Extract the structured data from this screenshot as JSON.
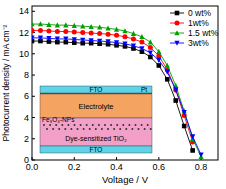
{
  "chart_data": {
    "type": "line",
    "x_label": "Voltage / V",
    "y_label": "Photocurrent density / mA cm⁻²",
    "x": [
      0,
      0.04,
      0.08,
      0.12,
      0.16,
      0.2,
      0.24,
      0.28,
      0.32,
      0.36,
      0.4,
      0.44,
      0.48,
      0.52,
      0.56,
      0.6,
      0.64,
      0.68,
      0.72,
      0.76,
      0.8,
      0.84
    ],
    "series": [
      {
        "name": "0 wt%",
        "color": "#000000",
        "marker": "square",
        "values": [
          11.2,
          11.2,
          11.15,
          11.1,
          11.1,
          11.05,
          11.0,
          11.0,
          10.95,
          10.9,
          10.8,
          10.7,
          10.5,
          10.2,
          9.7,
          8.9,
          7.6,
          5.6,
          3.2,
          0.9,
          null,
          null
        ]
      },
      {
        "name": "1wt%",
        "color": "#ff0000",
        "marker": "circle",
        "values": [
          12.2,
          12.2,
          12.15,
          12.1,
          12.1,
          12.05,
          12.0,
          11.95,
          11.9,
          11.85,
          11.75,
          11.6,
          11.4,
          11.1,
          10.6,
          9.8,
          8.5,
          6.6,
          4.2,
          1.7,
          null,
          null
        ]
      },
      {
        "name": "1.5 wt%",
        "color": "#00a000",
        "marker": "triangle-up",
        "values": [
          12.8,
          12.8,
          12.75,
          12.7,
          12.7,
          12.65,
          12.6,
          12.55,
          12.5,
          12.4,
          12.3,
          12.15,
          11.9,
          11.6,
          11.1,
          10.2,
          8.9,
          7.0,
          4.6,
          2.0,
          0.3,
          null
        ]
      },
      {
        "name": "3wt%",
        "color": "#0000ff",
        "marker": "triangle-down",
        "values": [
          11.5,
          11.5,
          11.45,
          11.4,
          11.4,
          11.35,
          11.3,
          11.25,
          11.2,
          11.15,
          11.05,
          10.95,
          10.75,
          10.5,
          10.1,
          9.4,
          8.3,
          6.6,
          4.5,
          2.2,
          0.5,
          null
        ]
      }
    ],
    "xlim": [
      0,
      0.88
    ],
    "xticks": [
      {
        "value": 0,
        "label": "0.0"
      },
      {
        "value": 0.2,
        "label": "0.2"
      },
      {
        "value": 0.4,
        "label": "0.4"
      },
      {
        "value": 0.6,
        "label": "0.6"
      },
      {
        "value": 0.8,
        "label": "0.8"
      }
    ],
    "ylim": [
      0,
      14.5
    ],
    "yticks": [
      0,
      2,
      4,
      6,
      8,
      10,
      12,
      14
    ],
    "legend": "upper right",
    "grid": false,
    "annotations": [
      "FTO",
      "Pt",
      "Electrolyte",
      "Fe₃O₄-NPs",
      "Dye-sensitized TiO₂",
      "FTO"
    ]
  }
}
